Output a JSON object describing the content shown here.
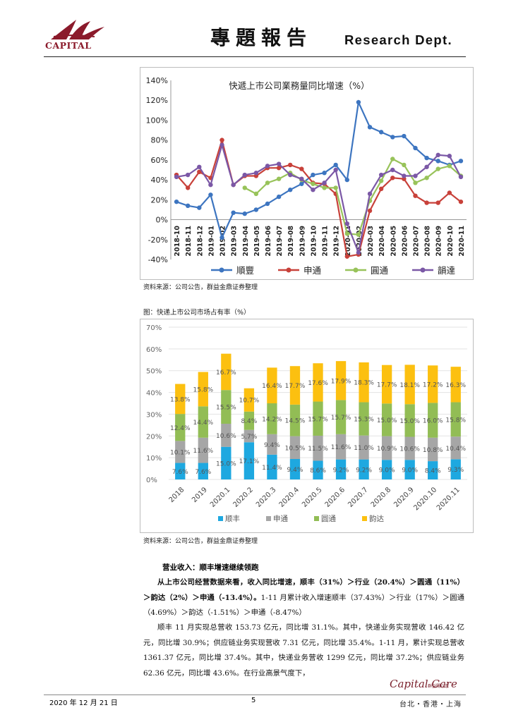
{
  "header": {
    "logo_text": "CAPITAL",
    "title": "專題報告",
    "dept": "Research Dept."
  },
  "figure1": {
    "source": "资料来源：公司公告，群益金鼎证券整理"
  },
  "figure2": {
    "caption": "图：快递上市公司市场占有率（%）",
    "source": "资料来源：公司公告，群益金鼎证券整理"
  },
  "body": {
    "section_heading": "营业收入：顺丰增速继续领跑",
    "para1_bold": "从上市公司经营数据来看，收入同比增速，顺丰（31%）＞行业（20.4%）＞圆通（11%）＞韵达（2%）＞申通（-13.4%）。",
    "para1_rest": "1-11 月累计收入增速顺丰（37.43%）＞行业（17%）＞圆通（4.69%）＞韵达（-1.51%）＞申通（-8.47%）",
    "para2": "顺丰 11 月实现总营收 153.73 亿元，同比增 31.1%。其中，快递业务实现营收 146.42 亿元，同比增 30.9%；供应链业务实现营收 7.31 亿元，同比增 35.4%。1-11 月，累计实现总营收 1361.37 亿元，同比增 37.4%。其中，快递业务营收 1299 亿元，同比增 37.2%；供应链业务 62.36 亿元，同比增 43.6%。在行业高景气度下，"
  },
  "footer": {
    "date": "2020 年 12 月 21 日",
    "page": "5",
    "brand": "Capital Care",
    "brand_sub": "群益關心您",
    "cities": "台北・香港・上海"
  },
  "chart_data": [
    {
      "type": "line",
      "title": "快遞上市公司業務量同比增速（%）",
      "categories": [
        "2018-10",
        "2018-11",
        "2018-12",
        "2019-01",
        "2019-02",
        "2019-03",
        "2019-04",
        "2019-05",
        "2019-06",
        "2019-07",
        "2019-08",
        "2019-09",
        "2019-10",
        "2019-11",
        "2019-12",
        "2020-01",
        "2020-02",
        "2020-03",
        "2020-04",
        "2020-05",
        "2020-06",
        "2020-07",
        "2020-08",
        "2020-09",
        "2020-10",
        "2020-11"
      ],
      "ylim": [
        -40,
        140
      ],
      "yticks": [
        "140%",
        "120%",
        "100%",
        "80%",
        "60%",
        "40%",
        "20%",
        "0%",
        "-20%",
        "-40%"
      ],
      "legend_position": "bottom",
      "series": [
        {
          "name": "順豐",
          "color": "#3d75c0",
          "values": [
            18,
            14,
            12,
            25,
            -18,
            7,
            6,
            10,
            16,
            23,
            30,
            36,
            45,
            47,
            55,
            40,
            118,
            93,
            88,
            83,
            84,
            72,
            62,
            59,
            55,
            59
          ]
        },
        {
          "name": "申通",
          "color": "#c8413a",
          "values": [
            45,
            32,
            48,
            42,
            80,
            35,
            44,
            44,
            52,
            52,
            55,
            51,
            37,
            36,
            26,
            -37,
            -35,
            9,
            31,
            42,
            41,
            24,
            17,
            17,
            27,
            18
          ]
        },
        {
          "name": "圓通",
          "color": "#98c35a",
          "values": [
            null,
            null,
            null,
            null,
            null,
            null,
            32,
            26,
            37,
            41,
            47,
            40,
            36,
            32,
            32,
            -14,
            -15,
            19,
            39,
            61,
            55,
            37,
            42,
            51,
            54,
            44
          ]
        },
        {
          "name": "韻達",
          "color": "#7b58a6",
          "values": [
            43,
            45,
            53,
            35,
            75,
            35,
            45,
            47,
            54,
            56,
            45,
            41,
            30,
            37,
            50,
            -4,
            -33,
            26,
            45,
            50,
            44,
            44,
            53,
            65,
            64,
            43
          ]
        }
      ]
    },
    {
      "type": "bar",
      "stacked": true,
      "categories": [
        "2018",
        "2019",
        "2020.1",
        "2020.2",
        "2020.3",
        "2020.4",
        "2020.5",
        "2020.6",
        "2020.7",
        "2020.8",
        "2020.9",
        "2020.10",
        "2020.11"
      ],
      "ylim": [
        0,
        70
      ],
      "yticks": [
        "70%",
        "60%",
        "50%",
        "40%",
        "30%",
        "20%",
        "10%",
        "0%"
      ],
      "legend_position": "bottom",
      "series": [
        {
          "name": "顺丰",
          "color": "#1ea8e0",
          "values": [
            7.6,
            7.6,
            15.0,
            17.1,
            11.4,
            9.4,
            8.6,
            9.2,
            9.2,
            9.0,
            9.0,
            8.4,
            9.3
          ]
        },
        {
          "name": "申通",
          "color": "#a6a6a6",
          "values": [
            10.1,
            11.6,
            10.6,
            5.7,
            9.4,
            10.5,
            11.5,
            11.6,
            11.0,
            10.9,
            10.6,
            10.8,
            10.4
          ]
        },
        {
          "name": "圆通",
          "color": "#92bd55",
          "values": [
            12.4,
            14.4,
            15.5,
            8.4,
            14.2,
            14.5,
            15.7,
            15.7,
            15.3,
            15.0,
            15.0,
            16.0,
            15.8
          ]
        },
        {
          "name": "韵达",
          "color": "#fcc010",
          "values": [
            13.8,
            15.8,
            16.7,
            10.7,
            16.4,
            17.7,
            17.6,
            17.9,
            18.3,
            17.7,
            18.1,
            17.2,
            16.3
          ]
        }
      ]
    }
  ]
}
